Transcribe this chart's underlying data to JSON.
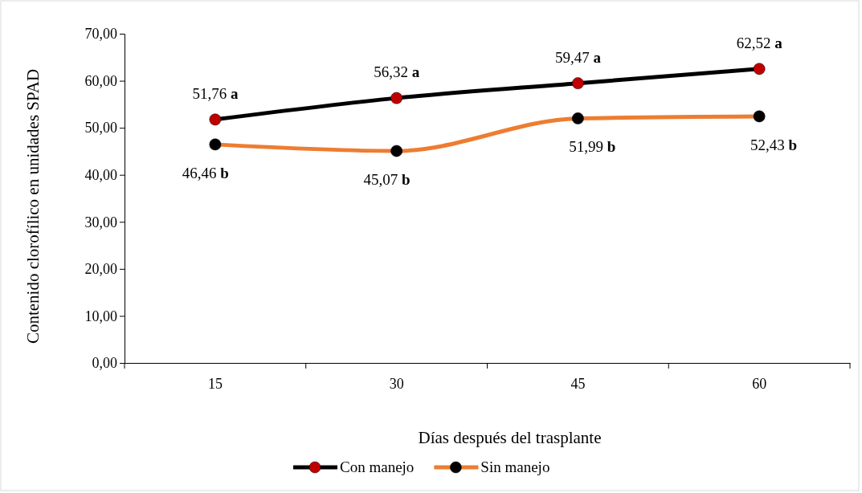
{
  "chart_data": {
    "type": "line",
    "xlabel": "Días después del trasplante",
    "ylabel": "Contenido clorofílico en unidades SPAD",
    "categories": [
      "15",
      "30",
      "45",
      "60"
    ],
    "series": [
      {
        "name": "Con manejo",
        "color": "#000000",
        "colors": [
          "#c00000",
          "#c00000",
          "#c00000",
          "#c00000"
        ],
        "values": [
          51.76,
          56.32,
          59.47,
          62.52
        ],
        "value_labels": [
          "51,76 a",
          "56,32 a",
          "59,47 a",
          "62,52 a"
        ]
      },
      {
        "name": "Sin manejo",
        "color": "#ed7d31",
        "colors": [
          "#000000",
          "#000000",
          "#000000",
          "#000000"
        ],
        "values": [
          46.46,
          45.07,
          51.99,
          52.43
        ],
        "value_labels": [
          "46,46 b",
          "45,07 b",
          "51,99 b",
          "52,43 b"
        ]
      }
    ],
    "ylim": [
      0,
      70
    ],
    "yticks": [
      {
        "value": 0,
        "label": "0,00"
      },
      {
        "value": 10,
        "label": "10,00"
      },
      {
        "value": 20,
        "label": "20,00"
      },
      {
        "value": 30,
        "label": "30,00"
      },
      {
        "value": 40,
        "label": "40,00"
      },
      {
        "value": 50,
        "label": "50,00"
      },
      {
        "value": 60,
        "label": "60,00"
      },
      {
        "value": 70,
        "label": "70,00"
      }
    ],
    "grid": false,
    "legend": "bottom",
    "marker": "circle",
    "line_style": "solid"
  }
}
